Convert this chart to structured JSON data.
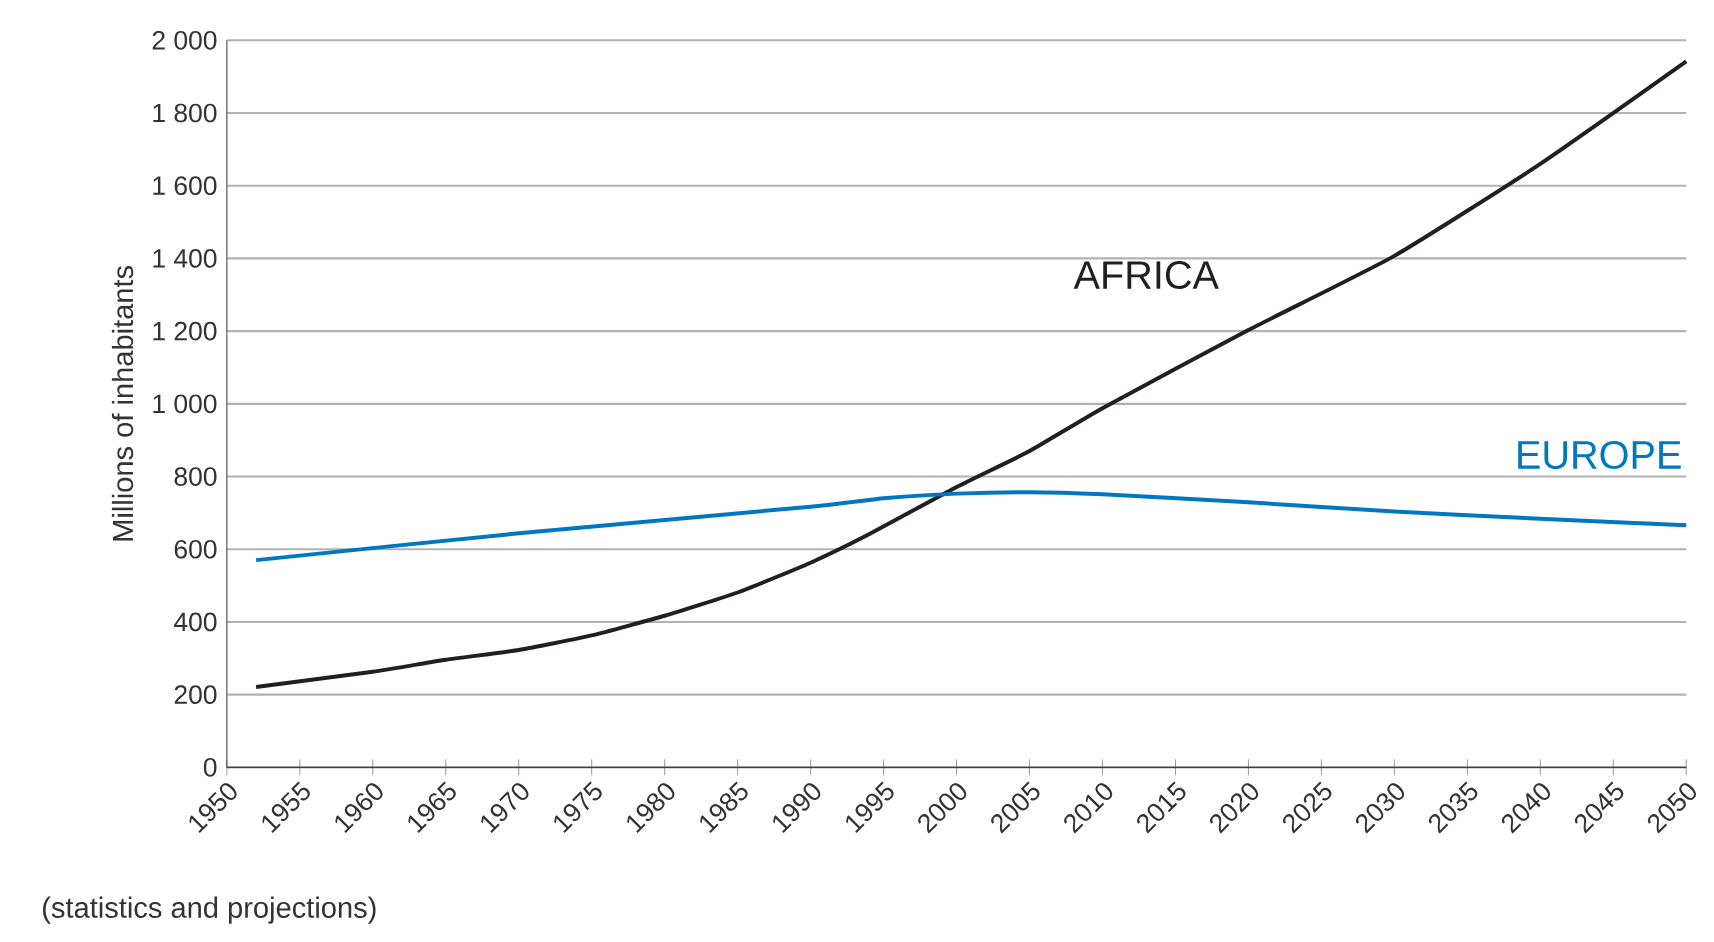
{
  "chart_data": {
    "type": "line",
    "ylabel": "Millions of inhabitants",
    "annotations": [
      "(statistics and projections)"
    ],
    "xlim": [
      1950,
      2050
    ],
    "xticks": [
      1950,
      1955,
      1960,
      1965,
      1970,
      1975,
      1980,
      1985,
      1990,
      1995,
      2000,
      2005,
      2010,
      2015,
      2020,
      2025,
      2030,
      2035,
      2040,
      2045,
      2050
    ],
    "ylim": [
      0,
      2000
    ],
    "yticks": [
      0,
      200,
      400,
      600,
      800,
      {
        "value": 1000,
        "label": "1 000"
      },
      {
        "value": 1200,
        "label": "1 200"
      },
      {
        "value": 1400,
        "label": "1 400"
      },
      {
        "value": 1600,
        "label": "1 600"
      },
      {
        "value": 1800,
        "label": "1 800"
      },
      {
        "value": 2000,
        "label": "2 000"
      }
    ],
    "grid": "y",
    "marker": "none",
    "line_style": "solid",
    "series": [
      {
        "name": "AFRICA",
        "color": "#231f20",
        "x": [
          1952,
          1960,
          1965,
          1970,
          1975,
          1980,
          1985,
          1990,
          1994,
          2000,
          2005,
          2010,
          2020,
          2030,
          2040,
          2050
        ],
        "values": [
          221,
          263,
          296,
          323,
          363,
          417,
          481,
          563,
          641,
          771,
          870,
          988,
          1203,
          1407,
          1660,
          1942
        ]
      },
      {
        "name": "EUROPE",
        "color": "#0077c0",
        "x": [
          1952,
          1970,
          1990,
          1995,
          2000,
          2005,
          2010,
          2020,
          2030,
          2040,
          2050
        ],
        "values": [
          570,
          644,
          717,
          740,
          753,
          757,
          751,
          729,
          704,
          684,
          666
        ]
      }
    ]
  }
}
